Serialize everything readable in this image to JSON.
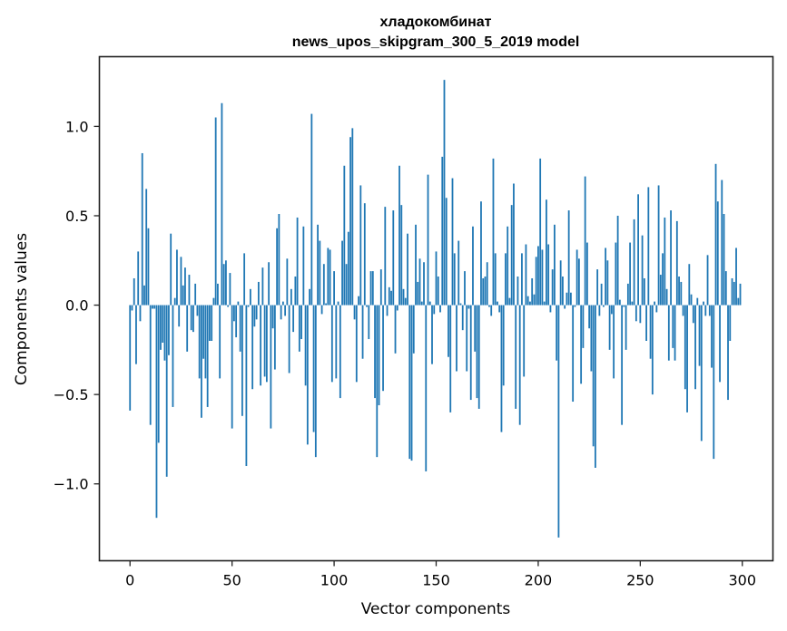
{
  "chart_data": {
    "type": "bar",
    "title": "хладокомбинат",
    "subtitle": "news_upos_skipgram_300_5_2019 model",
    "xlabel": "Vector components",
    "ylabel": "Components values",
    "xlim": [
      -15,
      315
    ],
    "ylim": [
      -1.43,
      1.39
    ],
    "xticks": [
      0,
      50,
      100,
      150,
      200,
      250,
      300
    ],
    "xtick_labels": [
      "0",
      "50",
      "100",
      "150",
      "200",
      "250",
      "300"
    ],
    "yticks": [
      -1.0,
      -0.5,
      0.0,
      0.5,
      1.0
    ],
    "ytick_labels": [
      "−1.0",
      "−0.5",
      "0.0",
      "0.5",
      "1.0"
    ],
    "grid": false,
    "bar_color": "#1f77b4",
    "x": "0..299",
    "values": [
      -0.59,
      -0.03,
      0.15,
      -0.33,
      0.3,
      -0.09,
      0.85,
      0.11,
      0.65,
      0.43,
      -0.67,
      -0.02,
      -0.02,
      -1.19,
      -0.77,
      -0.25,
      -0.21,
      -0.31,
      -0.96,
      -0.28,
      0.4,
      -0.57,
      0.04,
      0.31,
      -0.12,
      0.27,
      0.11,
      0.21,
      -0.26,
      0.17,
      -0.14,
      -0.15,
      0.12,
      -0.06,
      -0.41,
      -0.63,
      -0.3,
      -0.41,
      -0.57,
      -0.2,
      -0.2,
      0.04,
      1.05,
      0.12,
      -0.41,
      1.13,
      0.23,
      0.25,
      -0.01,
      0.18,
      -0.69,
      -0.09,
      -0.18,
      0.02,
      -0.26,
      -0.62,
      0.29,
      -0.9,
      -0.01,
      0.09,
      -0.47,
      -0.12,
      -0.08,
      0.13,
      -0.45,
      0.21,
      -0.4,
      -0.43,
      0.24,
      -0.69,
      -0.13,
      -0.36,
      0.43,
      0.51,
      -0.08,
      0.02,
      -0.06,
      0.26,
      -0.38,
      0.09,
      -0.15,
      0.16,
      0.49,
      -0.26,
      -0.19,
      0.44,
      -0.45,
      -0.78,
      0.09,
      1.07,
      -0.71,
      -0.85,
      0.45,
      0.36,
      -0.05,
      0.23,
      0.01,
      0.32,
      0.31,
      -0.43,
      0.19,
      -0.41,
      0.02,
      -0.52,
      0.36,
      0.78,
      0.23,
      0.41,
      0.94,
      0.99,
      -0.08,
      -0.43,
      0.05,
      0.67,
      -0.3,
      0.57,
      -0.01,
      -0.19,
      0.19,
      0.19,
      -0.52,
      -0.85,
      -0.56,
      0.2,
      -0.48,
      0.55,
      -0.06,
      0.1,
      0.08,
      0.53,
      -0.27,
      -0.03,
      0.78,
      0.56,
      0.09,
      0.04,
      0.4,
      -0.86,
      -0.87,
      -0.27,
      0.45,
      0.13,
      0.26,
      0.02,
      0.24,
      -0.93,
      0.73,
      0.02,
      -0.33,
      -0.05,
      0.3,
      0.16,
      -0.04,
      0.83,
      1.26,
      0.6,
      -0.29,
      -0.6,
      0.71,
      0.29,
      -0.37,
      0.36,
      0.01,
      -0.14,
      0.19,
      -0.37,
      -0.02,
      -0.53,
      0.44,
      -0.26,
      -0.52,
      -0.58,
      0.58,
      0.15,
      0.16,
      0.24,
      -0.01,
      -0.06,
      0.82,
      0.29,
      0.02,
      -0.04,
      -0.71,
      -0.45,
      0.29,
      0.44,
      0.04,
      0.56,
      0.68,
      -0.58,
      0.16,
      -0.67,
      0.29,
      -0.4,
      0.34,
      0.05,
      0.02,
      0.15,
      0.06,
      0.27,
      0.33,
      0.82,
      0.31,
      0.02,
      0.59,
      0.34,
      -0.04,
      0.2,
      0.45,
      -0.31,
      -1.3,
      0.25,
      0.16,
      -0.02,
      0.07,
      0.53,
      0.07,
      -0.54,
      -0.01,
      0.31,
      0.26,
      -0.44,
      -0.24,
      0.72,
      0.35,
      -0.13,
      -0.37,
      -0.79,
      -0.91,
      0.2,
      -0.06,
      0.12,
      -0.01,
      0.32,
      0.25,
      -0.25,
      -0.05,
      -0.41,
      0.35,
      0.5,
      0.03,
      -0.67,
      -0.01,
      -0.25,
      0.12,
      0.35,
      0.02,
      0.48,
      -0.09,
      0.62,
      -0.1,
      0.39,
      0.15,
      -0.2,
      0.66,
      -0.3,
      -0.5,
      0.02,
      -0.04,
      0.67,
      0.17,
      0.29,
      0.49,
      0.09,
      -0.31,
      0.53,
      -0.24,
      -0.31,
      0.47,
      0.16,
      0.13,
      -0.06,
      -0.47,
      -0.6,
      0.23,
      0.06,
      -0.1,
      -0.47,
      0.04,
      -0.34,
      -0.76,
      0.02,
      -0.06,
      0.28,
      -0.06,
      -0.35,
      -0.86,
      0.79,
      0.58,
      -0.43,
      0.7,
      0.51,
      0.19,
      -0.53,
      -0.2,
      0.15,
      0.13,
      0.32,
      0.04,
      0.12
    ]
  }
}
